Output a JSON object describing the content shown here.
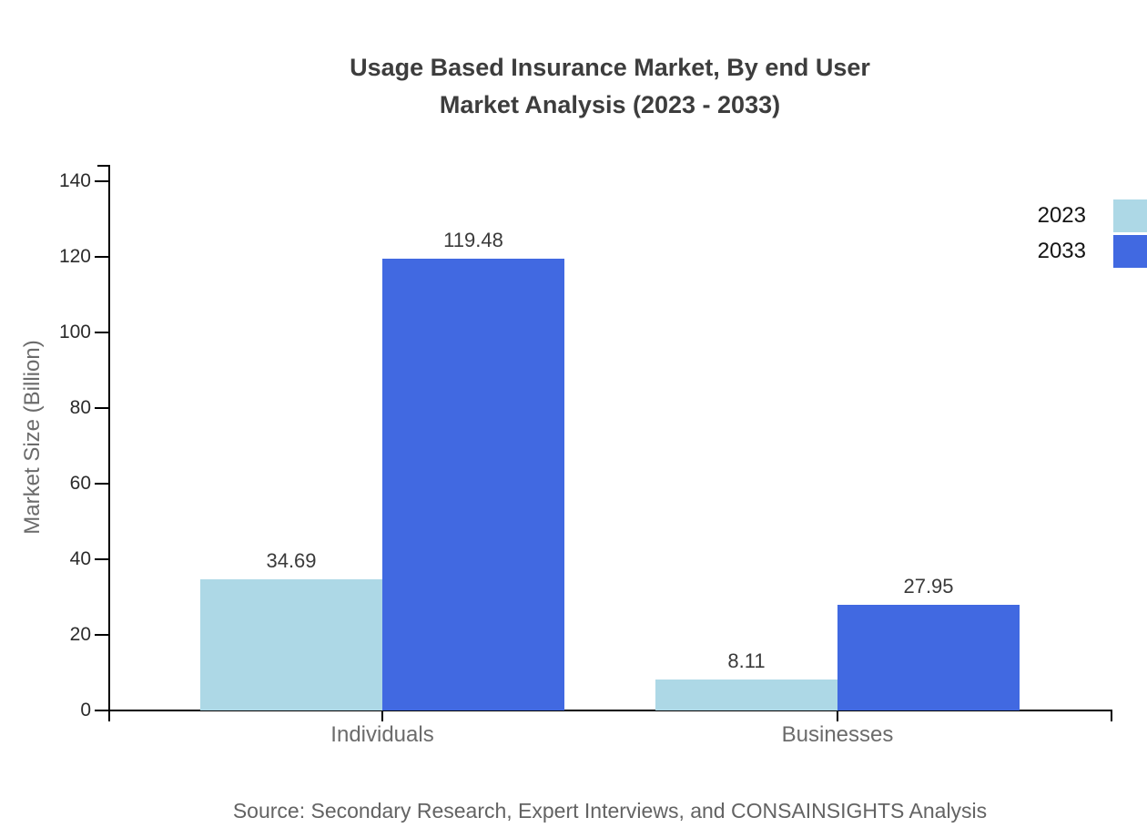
{
  "title": {
    "line1": "Usage Based Insurance Market, By end User",
    "line2": "Market Analysis (2023 - 2033)"
  },
  "chart_data": {
    "type": "bar",
    "categories": [
      "Individuals",
      "Businesses"
    ],
    "series": [
      {
        "name": "2023",
        "color": "#ADD8E6",
        "values": [
          34.69,
          8.11
        ]
      },
      {
        "name": "2033",
        "color": "#4169E1",
        "values": [
          119.48,
          27.95
        ]
      }
    ],
    "value_labels": [
      "34.69",
      "119.48",
      "8.11",
      "27.95"
    ],
    "title": "Usage Based Insurance Market, By end User Market Analysis (2023 - 2033)",
    "xlabel": "",
    "ylabel": "Market Size (Billion)",
    "ylim": [
      0,
      140
    ],
    "y_ticks": [
      0,
      20,
      40,
      60,
      80,
      100,
      120,
      140
    ],
    "grid": false,
    "legend_position": "top-right"
  },
  "source": "Source: Secondary Research, Expert Interviews, and CONSAINSIGHTS Analysis",
  "colors": {
    "series_2023": "#ADD8E6",
    "series_2033": "#4169E1",
    "axis": "#000000",
    "title_text": "#3d3d3d",
    "muted_text": "#6b6b6b",
    "source_text": "#636363"
  }
}
